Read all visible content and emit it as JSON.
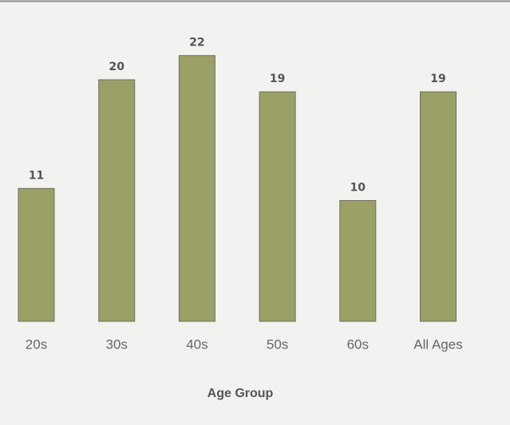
{
  "chart_data": {
    "type": "bar",
    "x_label": "Age Group",
    "categories": [
      "20s",
      "30s",
      "40s",
      "50s",
      "60s",
      "All Ages"
    ],
    "values": [
      11,
      20,
      22,
      19,
      10,
      19
    ],
    "color": "#9aa066"
  }
}
